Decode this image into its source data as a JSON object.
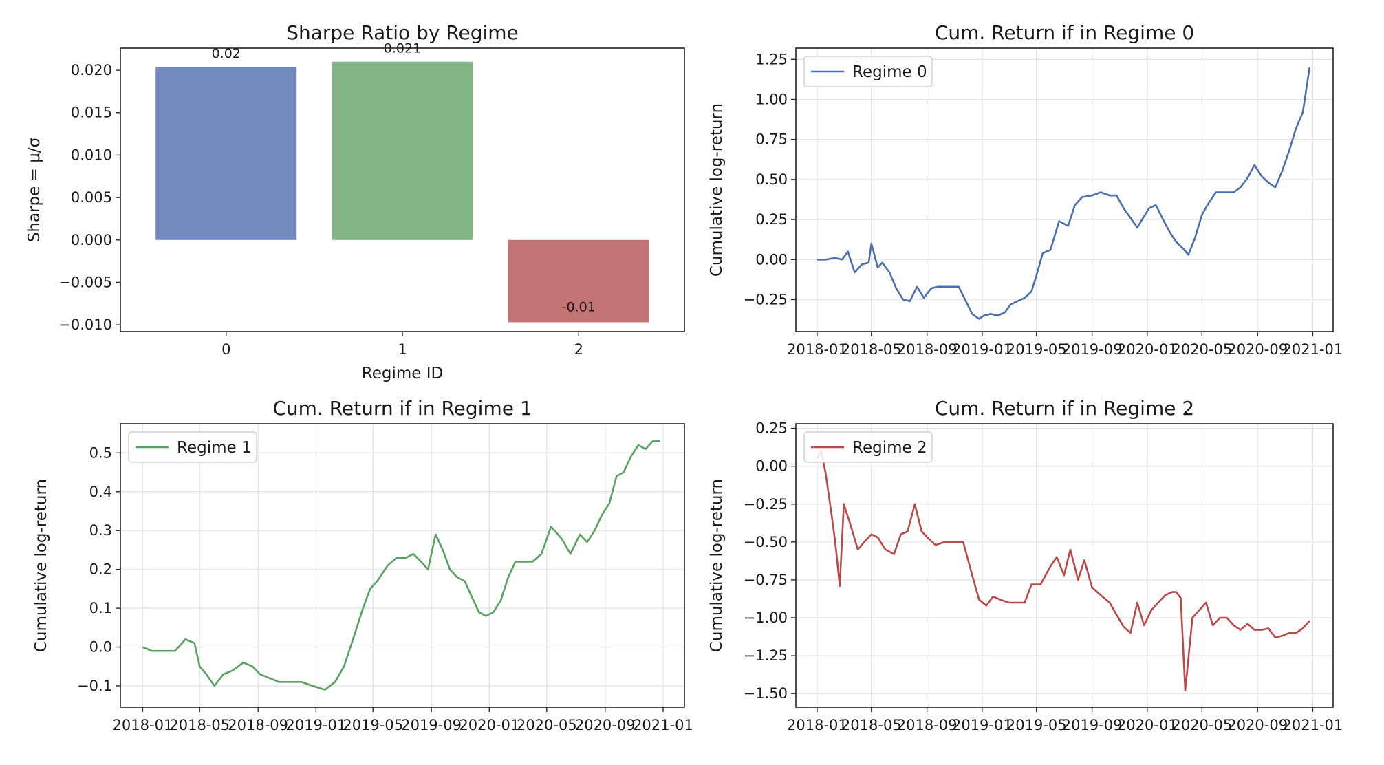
{
  "colors": {
    "regime0": "#4c6ead",
    "regime1": "#5aa064",
    "regime2": "#b94a4a",
    "bar0": "#7189bc",
    "bar1": "#84b587",
    "bar2": "#c27574"
  },
  "chart_data": [
    {
      "type": "bar",
      "title": "Sharpe Ratio by Regime",
      "xlabel": "Regime ID",
      "ylabel": "Sharpe = μ/σ",
      "categories": [
        "0",
        "1",
        "2"
      ],
      "values": [
        0.0204,
        0.021,
        -0.0097
      ],
      "data_labels": [
        "0.02",
        "0.021",
        "-0.01"
      ],
      "ylim": [
        -0.0108,
        0.0226
      ],
      "yticks": [
        -0.01,
        -0.005,
        0.0,
        0.005,
        0.01,
        0.015,
        0.02
      ],
      "ytick_labels": [
        "−0.010",
        "−0.005",
        "0.000",
        "0.005",
        "0.010",
        "0.015",
        "0.020"
      ],
      "grid": false
    },
    {
      "type": "line",
      "title": "Cum. Return if in Regime 0",
      "xlabel": "",
      "ylabel": "Cumulative log-return",
      "legend": "top-left",
      "grid": true,
      "xlim": [
        "2017-11-15",
        "2021-02-15"
      ],
      "xticks": [
        "2018-01",
        "2018-05",
        "2018-09",
        "2019-01",
        "2019-05",
        "2019-09",
        "2020-01",
        "2020-05",
        "2020-09",
        "2021-01"
      ],
      "ylim": [
        -0.45,
        1.32
      ],
      "yticks": [
        -0.25,
        0.0,
        0.25,
        0.5,
        0.75,
        1.0,
        1.25
      ],
      "ytick_labels": [
        "−0.25",
        "0.00",
        "0.25",
        "0.50",
        "0.75",
        "1.00",
        "1.25"
      ],
      "series": [
        {
          "name": "Regime 0",
          "color": "regime0",
          "x": [
            "2018-01-01",
            "2018-01-20",
            "2018-02-10",
            "2018-02-25",
            "2018-03-10",
            "2018-03-25",
            "2018-04-10",
            "2018-04-25",
            "2018-05-01",
            "2018-05-15",
            "2018-05-25",
            "2018-06-10",
            "2018-06-25",
            "2018-07-10",
            "2018-07-25",
            "2018-08-10",
            "2018-08-25",
            "2018-09-10",
            "2018-09-25",
            "2018-10-10",
            "2018-10-25",
            "2018-11-10",
            "2018-12-10",
            "2018-12-25",
            "2019-01-05",
            "2019-01-20",
            "2019-02-05",
            "2019-02-20",
            "2019-03-05",
            "2019-03-20",
            "2019-04-05",
            "2019-04-20",
            "2019-05-01",
            "2019-05-15",
            "2019-06-01",
            "2019-06-20",
            "2019-07-10",
            "2019-07-25",
            "2019-08-10",
            "2019-09-01",
            "2019-09-20",
            "2019-10-10",
            "2019-10-25",
            "2019-11-10",
            "2019-11-25",
            "2019-12-10",
            "2019-12-25",
            "2020-01-05",
            "2020-01-20",
            "2020-02-05",
            "2020-02-20",
            "2020-03-05",
            "2020-03-20",
            "2020-04-01",
            "2020-04-15",
            "2020-05-01",
            "2020-05-15",
            "2020-06-01",
            "2020-06-20",
            "2020-07-10",
            "2020-07-25",
            "2020-08-10",
            "2020-08-25",
            "2020-09-10",
            "2020-09-25",
            "2020-10-10",
            "2020-10-25",
            "2020-11-10",
            "2020-11-25",
            "2020-12-10",
            "2020-12-25"
          ],
          "y": [
            0.0,
            0.0,
            0.01,
            0.0,
            0.05,
            -0.08,
            -0.03,
            -0.02,
            0.1,
            -0.05,
            -0.02,
            -0.08,
            -0.18,
            -0.25,
            -0.26,
            -0.17,
            -0.24,
            -0.18,
            -0.17,
            -0.17,
            -0.17,
            -0.17,
            -0.34,
            -0.37,
            -0.35,
            -0.34,
            -0.35,
            -0.33,
            -0.28,
            -0.26,
            -0.24,
            -0.2,
            -0.1,
            0.04,
            0.06,
            0.24,
            0.21,
            0.34,
            0.39,
            0.4,
            0.42,
            0.4,
            0.4,
            0.32,
            0.26,
            0.2,
            0.27,
            0.32,
            0.34,
            0.25,
            0.17,
            0.11,
            0.07,
            0.03,
            0.13,
            0.28,
            0.35,
            0.42,
            0.42,
            0.42,
            0.45,
            0.51,
            0.59,
            0.52,
            0.48,
            0.45,
            0.55,
            0.68,
            0.82,
            0.92,
            1.2
          ]
        }
      ]
    },
    {
      "type": "line",
      "title": "Cum. Return if in Regime 1",
      "xlabel": "",
      "ylabel": "Cumulative log-return",
      "legend": "top-left",
      "grid": true,
      "xlim": [
        "2017-11-15",
        "2021-02-15"
      ],
      "xticks": [
        "2018-01",
        "2018-05",
        "2018-09",
        "2019-01",
        "2019-05",
        "2019-09",
        "2020-01",
        "2020-05",
        "2020-09",
        "2021-01"
      ],
      "ylim": [
        -0.155,
        0.575
      ],
      "yticks": [
        -0.1,
        0.0,
        0.1,
        0.2,
        0.3,
        0.4,
        0.5
      ],
      "ytick_labels": [
        "−0.1",
        "0.0",
        "0.1",
        "0.2",
        "0.3",
        "0.4",
        "0.5"
      ],
      "series": [
        {
          "name": "Regime 1",
          "color": "regime1",
          "x": [
            "2018-01-01",
            "2018-01-20",
            "2018-02-10",
            "2018-03-10",
            "2018-04-01",
            "2018-04-20",
            "2018-05-01",
            "2018-05-15",
            "2018-06-01",
            "2018-06-20",
            "2018-07-10",
            "2018-08-01",
            "2018-08-20",
            "2018-09-05",
            "2018-09-25",
            "2018-10-15",
            "2018-11-05",
            "2018-12-01",
            "2018-12-25",
            "2019-01-20",
            "2019-02-10",
            "2019-03-01",
            "2019-03-20",
            "2019-04-10",
            "2019-04-25",
            "2019-05-10",
            "2019-06-01",
            "2019-06-20",
            "2019-07-10",
            "2019-07-25",
            "2019-08-10",
            "2019-08-25",
            "2019-09-10",
            "2019-09-25",
            "2019-10-10",
            "2019-10-25",
            "2019-11-10",
            "2019-11-25",
            "2019-12-10",
            "2019-12-25",
            "2020-01-10",
            "2020-01-25",
            "2020-02-10",
            "2020-02-25",
            "2020-03-10",
            "2020-04-01",
            "2020-04-20",
            "2020-05-10",
            "2020-06-01",
            "2020-06-20",
            "2020-07-10",
            "2020-07-25",
            "2020-08-10",
            "2020-08-25",
            "2020-09-10",
            "2020-09-25",
            "2020-10-10",
            "2020-10-25",
            "2020-11-10",
            "2020-11-25",
            "2020-12-10",
            "2020-12-25"
          ],
          "y": [
            0.0,
            -0.01,
            -0.01,
            -0.01,
            0.02,
            0.01,
            -0.05,
            -0.07,
            -0.1,
            -0.07,
            -0.06,
            -0.04,
            -0.05,
            -0.07,
            -0.08,
            -0.09,
            -0.09,
            -0.09,
            -0.1,
            -0.11,
            -0.09,
            -0.05,
            0.02,
            0.1,
            0.15,
            0.17,
            0.21,
            0.23,
            0.23,
            0.24,
            0.22,
            0.2,
            0.29,
            0.25,
            0.2,
            0.18,
            0.17,
            0.13,
            0.09,
            0.08,
            0.09,
            0.12,
            0.18,
            0.22,
            0.22,
            0.22,
            0.24,
            0.31,
            0.28,
            0.24,
            0.29,
            0.27,
            0.3,
            0.34,
            0.37,
            0.44,
            0.45,
            0.49,
            0.52,
            0.51,
            0.53,
            0.53
          ]
        }
      ]
    },
    {
      "type": "line",
      "title": "Cum. Return if in Regime 2",
      "xlabel": "",
      "ylabel": "Cumulative log-return",
      "legend": "top-left",
      "grid": true,
      "xlim": [
        "2017-11-15",
        "2021-02-15"
      ],
      "xticks": [
        "2018-01",
        "2018-05",
        "2018-09",
        "2019-01",
        "2019-05",
        "2019-09",
        "2020-01",
        "2020-05",
        "2020-09",
        "2021-01"
      ],
      "ylim": [
        -1.59,
        0.28
      ],
      "yticks": [
        -1.5,
        -1.25,
        -1.0,
        -0.75,
        -0.5,
        -0.25,
        0.0,
        0.25
      ],
      "ytick_labels": [
        "−1.50",
        "−1.25",
        "−1.00",
        "−0.75",
        "−0.50",
        "−0.25",
        "0.00",
        "0.25"
      ],
      "series": [
        {
          "name": "Regime 2",
          "color": "regime2",
          "x": [
            "2018-01-01",
            "2018-01-10",
            "2018-01-20",
            "2018-02-01",
            "2018-02-10",
            "2018-02-20",
            "2018-03-01",
            "2018-03-15",
            "2018-04-01",
            "2018-04-15",
            "2018-05-01",
            "2018-05-15",
            "2018-06-01",
            "2018-06-20",
            "2018-07-05",
            "2018-07-20",
            "2018-08-05",
            "2018-08-20",
            "2018-09-05",
            "2018-09-20",
            "2018-10-10",
            "2018-11-01",
            "2018-11-20",
            "2018-12-10",
            "2018-12-25",
            "2019-01-10",
            "2019-01-25",
            "2019-02-10",
            "2019-03-01",
            "2019-03-20",
            "2019-04-05",
            "2019-04-20",
            "2019-05-10",
            "2019-06-01",
            "2019-06-15",
            "2019-07-01",
            "2019-07-15",
            "2019-08-01",
            "2019-08-15",
            "2019-09-01",
            "2019-09-20",
            "2019-10-10",
            "2019-10-25",
            "2019-11-10",
            "2019-11-25",
            "2019-12-10",
            "2019-12-25",
            "2020-01-10",
            "2020-01-25",
            "2020-02-10",
            "2020-02-25",
            "2020-03-05",
            "2020-03-15",
            "2020-03-25",
            "2020-04-10",
            "2020-04-25",
            "2020-05-10",
            "2020-05-25",
            "2020-06-10",
            "2020-06-25",
            "2020-07-10",
            "2020-07-25",
            "2020-08-10",
            "2020-08-25",
            "2020-09-10",
            "2020-09-25",
            "2020-10-10",
            "2020-10-25",
            "2020-11-10",
            "2020-11-25",
            "2020-12-10",
            "2020-12-25"
          ],
          "y": [
            0.05,
            0.1,
            -0.05,
            -0.3,
            -0.5,
            -0.79,
            -0.25,
            -0.38,
            -0.55,
            -0.5,
            -0.45,
            -0.47,
            -0.55,
            -0.58,
            -0.45,
            -0.43,
            -0.25,
            -0.43,
            -0.48,
            -0.52,
            -0.5,
            -0.5,
            -0.5,
            -0.72,
            -0.88,
            -0.92,
            -0.86,
            -0.88,
            -0.9,
            -0.9,
            -0.9,
            -0.78,
            -0.78,
            -0.66,
            -0.6,
            -0.72,
            -0.55,
            -0.75,
            -0.62,
            -0.8,
            -0.85,
            -0.9,
            -0.98,
            -1.06,
            -1.1,
            -0.9,
            -1.05,
            -0.95,
            -0.9,
            -0.85,
            -0.83,
            -0.83,
            -0.87,
            -1.48,
            -1.0,
            -0.95,
            -0.9,
            -1.05,
            -1.0,
            -1.0,
            -1.05,
            -1.08,
            -1.04,
            -1.08,
            -1.08,
            -1.07,
            -1.13,
            -1.12,
            -1.1,
            -1.1,
            -1.07,
            -1.02
          ]
        }
      ]
    }
  ]
}
